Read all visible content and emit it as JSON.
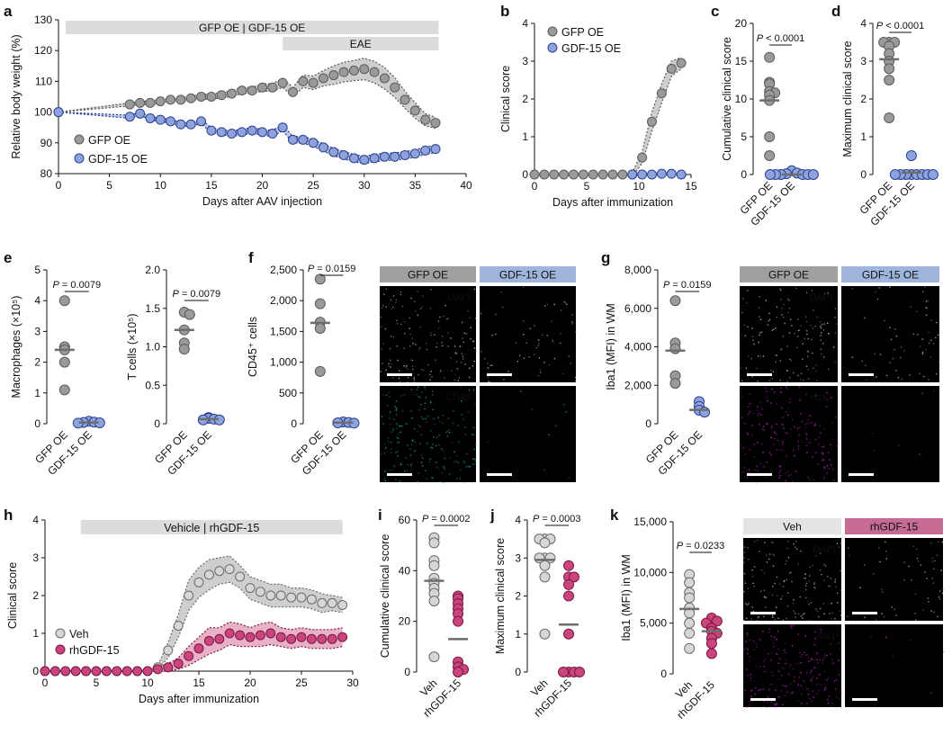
{
  "colors": {
    "gfp": "#9a9a9a",
    "gfp_fill": "#c9c9c9",
    "gdf": "#8ea3dc",
    "gdf_edge": "#2b3f8f",
    "gdf_fill": "#b5c3e8",
    "veh": "#d6d6d6",
    "rh": "#c9457c",
    "rh_fill": "#e6a8c2",
    "rh_edge": "#7a1743",
    "bar": "#dcdcdc",
    "hdr_gfp": "#a0a0a0",
    "hdr_gdf": "#9fb5dc",
    "hdr_veh": "#e4e4e4",
    "hdr_rh": "#c66b93",
    "mean": "#6e6e6e"
  },
  "labels": {
    "a": "a",
    "b": "b",
    "c": "c",
    "d": "d",
    "e": "e",
    "f": "f",
    "g": "g",
    "h": "h",
    "i": "i",
    "j": "j",
    "k": "k"
  },
  "chart_data": [
    {
      "panel": "a",
      "type": "line",
      "xlabel": "Days after AAV injection",
      "ylabel": "Relative body weight (%)",
      "xlim": [
        0,
        40
      ],
      "ylim": [
        80,
        130
      ],
      "xticks": [
        "0",
        "5",
        "10",
        "15",
        "20",
        "25",
        "30",
        "35",
        "40"
      ],
      "yticks": [
        "80",
        "90",
        "100",
        "110",
        "120",
        "130"
      ],
      "bars": [
        "GFP OE | GDF-15 OE",
        "EAE"
      ],
      "legend": [
        "GFP OE",
        "GDF-15 OE"
      ],
      "series": [
        {
          "name": "GFP OE",
          "x": [
            0,
            7,
            8,
            9,
            10,
            11,
            12,
            13,
            14,
            15,
            16,
            17,
            18,
            19,
            20,
            21,
            22,
            23,
            24,
            25,
            26,
            27,
            28,
            29,
            30,
            31,
            32,
            33,
            34,
            35,
            36,
            37
          ],
          "y": [
            100,
            102.5,
            103,
            103,
            103.5,
            104,
            104,
            104.5,
            105,
            105,
            105.5,
            106,
            107,
            107,
            108,
            108,
            109.5,
            106.5,
            110,
            109.5,
            111,
            112,
            113,
            113.5,
            114,
            113,
            111,
            108,
            104,
            100.5,
            97.5,
            96.5
          ],
          "err": [
            0,
            0.5,
            0.5,
            0.6,
            0.6,
            0.6,
            0.7,
            0.7,
            0.8,
            0.8,
            0.9,
            0.9,
            1,
            1,
            1.2,
            1.2,
            1.5,
            1.5,
            2,
            2.2,
            2.5,
            3,
            3.2,
            3.3,
            3.5,
            3.5,
            3.5,
            3.2,
            2.8,
            2.5,
            2,
            1.8
          ]
        },
        {
          "name": "GDF-15 OE",
          "x": [
            0,
            7,
            8,
            9,
            10,
            11,
            12,
            13,
            14,
            15,
            16,
            17,
            18,
            19,
            20,
            21,
            22,
            23,
            24,
            25,
            26,
            27,
            28,
            29,
            30,
            31,
            32,
            33,
            34,
            35,
            36,
            37
          ],
          "y": [
            100,
            98.5,
            99.5,
            98,
            97.5,
            97,
            96,
            96,
            97,
            94,
            93.5,
            93,
            93.5,
            94,
            93.5,
            93,
            95,
            91,
            91,
            90,
            88.5,
            87,
            86,
            85,
            84.5,
            85,
            85.5,
            85.5,
            86,
            86.5,
            87.5,
            88
          ],
          "err": [
            0,
            0.5,
            0.5,
            0.5,
            0.6,
            0.6,
            0.6,
            0.7,
            0.7,
            0.8,
            0.8,
            0.9,
            0.9,
            0.9,
            0.9,
            1,
            1,
            1,
            1.1,
            1.1,
            1.2,
            1.2,
            1.2,
            1.2,
            1.2,
            1.2,
            1.2,
            1.2,
            1.2,
            1.2,
            1.2,
            1.2
          ]
        }
      ]
    },
    {
      "panel": "b",
      "type": "line",
      "xlabel": "Days after immunization",
      "ylabel": "Clinical score",
      "xlim": [
        0,
        16
      ],
      "ylim": [
        0,
        4
      ],
      "xticks": [
        "0",
        "5",
        "10",
        "15"
      ],
      "yticks": [
        "0",
        "1",
        "2",
        "3",
        "4"
      ],
      "legend": [
        "GFP OE",
        "GDF-15 OE"
      ],
      "series": [
        {
          "name": "GFP OE",
          "x": [
            0,
            1,
            2,
            3,
            4,
            5,
            6,
            7,
            8,
            9,
            10,
            11,
            12,
            13,
            14,
            15
          ],
          "y": [
            0,
            0,
            0,
            0,
            0,
            0,
            0,
            0,
            0,
            0,
            0,
            0.45,
            1.4,
            2.15,
            2.8,
            2.95
          ],
          "err": [
            0,
            0,
            0,
            0,
            0,
            0,
            0,
            0,
            0,
            0,
            0.05,
            0.15,
            0.25,
            0.25,
            0.2,
            0.15
          ]
        },
        {
          "name": "GDF-15 OE",
          "x": [
            10,
            11,
            12,
            13,
            14,
            15
          ],
          "y": [
            0,
            0,
            0,
            0.02,
            0.02,
            0
          ],
          "err": [
            0,
            0,
            0,
            0,
            0,
            0
          ]
        }
      ]
    },
    {
      "panel": "c",
      "type": "scatter",
      "ylabel": "Cumulative clinical score",
      "ylim": [
        0,
        20
      ],
      "yticks": [
        "0",
        "5",
        "10",
        "15",
        "20"
      ],
      "p": "P < 0.0001",
      "categories": [
        "GFP OE",
        "GDF-15 OE"
      ],
      "groups": [
        {
          "values": [
            15.5,
            12.2,
            12,
            11,
            10.8,
            10.5,
            9.8,
            5,
            2.5
          ],
          "mean": 9.8
        },
        {
          "values": [
            0.5,
            0.2,
            0.1,
            0,
            0,
            0,
            0,
            0,
            0
          ],
          "mean": 0
        }
      ]
    },
    {
      "panel": "d",
      "type": "scatter",
      "ylabel": "Maximum clinical score",
      "ylim": [
        0,
        4
      ],
      "yticks": [
        "0",
        "1",
        "2",
        "3",
        "4"
      ],
      "p": "P < 0.0001",
      "categories": [
        "GFP OE",
        "GDF-15 OE"
      ],
      "groups": [
        {
          "values": [
            3.5,
            3.5,
            3.5,
            3.4,
            3.2,
            3,
            2.8,
            2.5,
            1.5
          ],
          "mean": 3.05
        },
        {
          "values": [
            0.5,
            0,
            0,
            0,
            0,
            0,
            0,
            0,
            0
          ],
          "mean": 0.05
        }
      ]
    },
    {
      "panel": "e1",
      "type": "scatter",
      "ylabel": "Macrophages (×10⁵)",
      "ylim": [
        0,
        5
      ],
      "yticks": [
        "0",
        "1",
        "2",
        "3",
        "4",
        "5"
      ],
      "p": "P = 0.0079",
      "categories": [
        "GFP OE",
        "GDF-15 OE"
      ],
      "groups": [
        {
          "values": [
            4,
            2.5,
            2.4,
            2,
            1.1
          ],
          "mean": 2.4
        },
        {
          "values": [
            0.08,
            0.05,
            0.04,
            0.03,
            0.02
          ],
          "mean": 0.04
        }
      ]
    },
    {
      "panel": "e2",
      "type": "scatter",
      "ylabel": "T cells (×10⁵)",
      "ylim": [
        0,
        2.0
      ],
      "yticks": [
        "0",
        "0.5",
        "1.0",
        "1.5",
        "2.0"
      ],
      "p": "P = 0.0079",
      "categories": [
        "GFP OE",
        "GDF-15 OE"
      ],
      "groups": [
        {
          "values": [
            1.45,
            1.42,
            1.22,
            1.05,
            0.97
          ],
          "mean": 1.22
        },
        {
          "values": [
            0.08,
            0.07,
            0.06,
            0.05,
            0.05
          ],
          "mean": 0.06
        }
      ]
    },
    {
      "panel": "f",
      "type": "scatter",
      "ylabel": "CD45⁺ cells",
      "ylim": [
        0,
        2500
      ],
      "yticks": [
        "0",
        "500",
        "1,000",
        "1,500",
        "2,000",
        "2,500"
      ],
      "p": "P = 0.0159",
      "categories": [
        "GFP OE",
        "GDF-15 OE"
      ],
      "groups": [
        {
          "values": [
            2350,
            1950,
            1650,
            1550,
            850
          ],
          "mean": 1640
        },
        {
          "values": [
            30,
            20,
            15,
            10
          ],
          "mean": 18
        }
      ]
    },
    {
      "panel": "g",
      "type": "scatter",
      "ylabel": "Iba1 (MFI) in WM",
      "ylim": [
        0,
        8000
      ],
      "yticks": [
        "0",
        "2,000",
        "4,000",
        "6,000",
        "8,000"
      ],
      "p": "P = 0.0159",
      "categories": [
        "GFP OE",
        "GDF-15 OE"
      ],
      "groups": [
        {
          "values": [
            6400,
            4200,
            3900,
            2500,
            2100
          ],
          "mean": 3800
        },
        {
          "values": [
            1150,
            900,
            700,
            600
          ],
          "mean": 720
        }
      ]
    },
    {
      "panel": "h",
      "type": "line",
      "xlabel": "Days after immunization",
      "ylabel": "Clinical score",
      "xlim": [
        0,
        30
      ],
      "ylim": [
        0,
        4
      ],
      "xticks": [
        "0",
        "5",
        "10",
        "15",
        "20",
        "25",
        "30"
      ],
      "yticks": [
        "0",
        "1",
        "2",
        "3",
        "4"
      ],
      "bars": [
        "Vehicle | rhGDF-15"
      ],
      "legend": [
        "Veh",
        "rhGDF-15"
      ],
      "series": [
        {
          "name": "Veh",
          "x": [
            0,
            1,
            2,
            3,
            4,
            5,
            6,
            7,
            8,
            9,
            10,
            11,
            12,
            13,
            14,
            15,
            16,
            17,
            18,
            19,
            20,
            21,
            22,
            23,
            24,
            25,
            26,
            27,
            28,
            29
          ],
          "y": [
            0,
            0,
            0,
            0,
            0,
            0,
            0,
            0,
            0,
            0,
            0,
            0.1,
            0.55,
            1.2,
            2,
            2.35,
            2.55,
            2.65,
            2.7,
            2.5,
            2.2,
            2.1,
            2,
            2,
            1.95,
            1.95,
            1.9,
            1.8,
            1.8,
            1.75
          ],
          "err": [
            0,
            0,
            0,
            0,
            0,
            0,
            0,
            0,
            0,
            0,
            0,
            0.05,
            0.2,
            0.3,
            0.4,
            0.4,
            0.4,
            0.35,
            0.35,
            0.3,
            0.3,
            0.3,
            0.3,
            0.3,
            0.25,
            0.25,
            0.25,
            0.25,
            0.2,
            0.2
          ]
        },
        {
          "name": "rhGDF-15",
          "x": [
            0,
            1,
            2,
            3,
            4,
            5,
            6,
            7,
            8,
            9,
            10,
            11,
            12,
            13,
            14,
            15,
            16,
            17,
            18,
            19,
            20,
            21,
            22,
            23,
            24,
            25,
            26,
            27,
            28,
            29
          ],
          "y": [
            0,
            0,
            0,
            0,
            0,
            0,
            0,
            0,
            0,
            0,
            0,
            0.05,
            0.1,
            0.2,
            0.4,
            0.6,
            0.8,
            0.85,
            1,
            0.95,
            0.9,
            0.95,
            1,
            0.9,
            0.85,
            0.9,
            0.85,
            0.85,
            0.85,
            0.9
          ],
          "err": [
            0,
            0,
            0,
            0,
            0,
            0,
            0,
            0,
            0,
            0,
            0,
            0.05,
            0.1,
            0.15,
            0.25,
            0.3,
            0.35,
            0.3,
            0.3,
            0.3,
            0.25,
            0.3,
            0.3,
            0.25,
            0.25,
            0.25,
            0.25,
            0.25,
            0.25,
            0.25
          ]
        }
      ]
    },
    {
      "panel": "i",
      "type": "scatter",
      "ylabel": "Cumulative clinical score",
      "ylim": [
        0,
        60
      ],
      "yticks": [
        "0",
        "20",
        "40",
        "60"
      ],
      "p": "P = 0.0002",
      "categories": [
        "Veh",
        "rhGDF-15"
      ],
      "groups": [
        {
          "values": [
            53,
            51,
            44,
            42,
            37,
            35,
            33,
            31,
            28,
            6
          ],
          "mean": 36
        },
        {
          "values": [
            30,
            29,
            27,
            25,
            23,
            20,
            4,
            2,
            1,
            0
          ],
          "mean": 13
        }
      ]
    },
    {
      "panel": "j",
      "type": "scatter",
      "ylabel": "Maximum clinical score",
      "ylim": [
        0,
        4
      ],
      "yticks": [
        "0",
        "1",
        "2",
        "3",
        "4"
      ],
      "p": "P = 0.0003",
      "categories": [
        "Veh",
        "rhGDF-15"
      ],
      "groups": [
        {
          "values": [
            3.5,
            3.5,
            3.5,
            3.4,
            3,
            3,
            3,
            2.8,
            2.5,
            1
          ],
          "mean": 2.95
        },
        {
          "values": [
            2.8,
            2.5,
            2.5,
            2.3,
            2,
            1,
            0,
            0,
            0,
            0
          ],
          "mean": 1.25
        }
      ]
    },
    {
      "panel": "k",
      "type": "scatter",
      "ylabel": "Iba1 (MFI) in WM",
      "ylim": [
        0,
        15000
      ],
      "yticks": [
        "0",
        "5,000",
        "10,000",
        "15,000"
      ],
      "p": "P = 0.0233",
      "categories": [
        "Veh",
        "rhGDF-15"
      ],
      "groups": [
        {
          "values": [
            9800,
            9000,
            8000,
            7500,
            6500,
            6000,
            5000,
            4000,
            2500
          ],
          "mean": 6400
        },
        {
          "values": [
            5500,
            5200,
            5000,
            4500,
            4200,
            4000,
            3500,
            3000,
            2000
          ],
          "mean": 4200
        }
      ]
    }
  ],
  "images": {
    "f": {
      "headers": [
        "GFP OE",
        "GDF-15 OE"
      ],
      "labels": [
        "DAPI",
        "CD45"
      ]
    },
    "g": {
      "headers": [
        "GFP OE",
        "GDF-15 OE"
      ],
      "labels": [
        "DAPI",
        "Iba1"
      ]
    },
    "k": {
      "headers": [
        "Veh",
        "rhGDF-15"
      ],
      "labels": [
        "DAPI",
        "Iba1"
      ]
    }
  }
}
